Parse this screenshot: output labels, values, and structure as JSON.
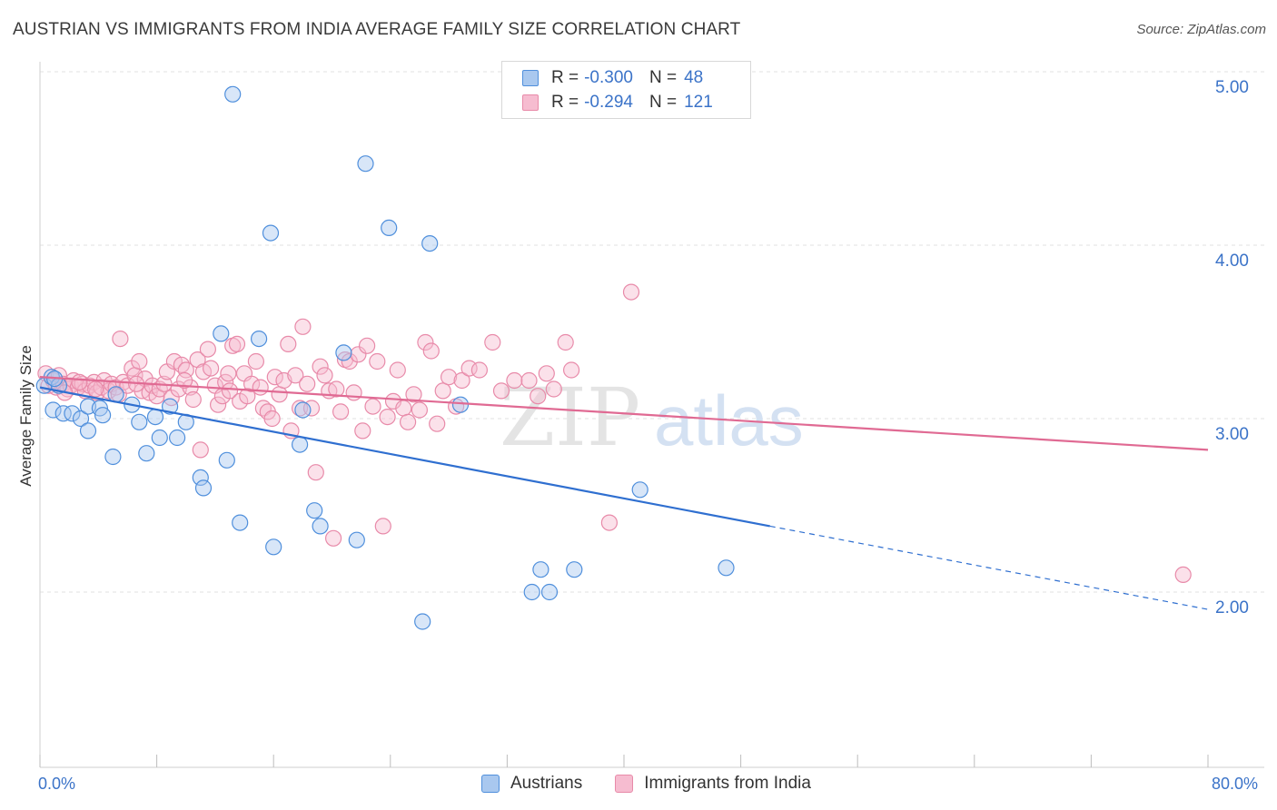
{
  "header": {
    "title": "AUSTRIAN VS IMMIGRANTS FROM INDIA AVERAGE FAMILY SIZE CORRELATION CHART",
    "source": "Source: ZipAtlas.com"
  },
  "watermark": {
    "text_zip": "ZIP",
    "text_atlas": "atlas"
  },
  "legend_top": {
    "rows": [
      {
        "r_label": "R =",
        "r_value": "-0.300",
        "n_label": "N =",
        "n_value": "48"
      },
      {
        "r_label": "R =",
        "r_value": "-0.294",
        "n_label": "N =",
        "n_value": "121"
      }
    ]
  },
  "legend_bottom": {
    "items": [
      {
        "label": "Austrians"
      },
      {
        "label": "Immigrants from India"
      }
    ]
  },
  "axes": {
    "ylabel": "Average Family Size",
    "x_tick_left": "0.0%",
    "x_tick_right": "80.0%",
    "y_ticks": [
      "5.00",
      "4.00",
      "3.00",
      "2.00"
    ]
  },
  "colors": {
    "blue_fill": "#a9c8ef",
    "blue_stroke": "#4f8fdc",
    "blue_line": "#2f6fd0",
    "pink_fill": "#f6bcd0",
    "pink_stroke": "#e88aa9",
    "pink_line": "#e06a93",
    "accent_text": "#3b73c8"
  },
  "chart_data": {
    "type": "scatter",
    "xlim": [
      0,
      80
    ],
    "ylim": [
      1.0,
      5.1
    ],
    "x_unit": "%",
    "grid": "horizontal dashed",
    "series": [
      {
        "name": "Austrians",
        "r": -0.3,
        "n": 48,
        "points": [
          [
            0.3,
            3.19
          ],
          [
            0.8,
            3.24
          ],
          [
            0.9,
            3.05
          ],
          [
            1.3,
            3.19
          ],
          [
            1.6,
            3.03
          ],
          [
            2.2,
            3.03
          ],
          [
            2.8,
            3.0
          ],
          [
            3.3,
            3.07
          ],
          [
            3.3,
            2.93
          ],
          [
            4.1,
            3.06
          ],
          [
            4.3,
            3.02
          ],
          [
            5.0,
            2.78
          ],
          [
            5.2,
            3.14
          ],
          [
            6.3,
            3.08
          ],
          [
            6.8,
            2.98
          ],
          [
            7.3,
            2.8
          ],
          [
            7.9,
            3.01
          ],
          [
            8.2,
            2.89
          ],
          [
            8.9,
            3.07
          ],
          [
            9.4,
            2.89
          ],
          [
            10.0,
            2.98
          ],
          [
            11.0,
            2.66
          ],
          [
            11.2,
            2.6
          ],
          [
            12.4,
            3.49
          ],
          [
            12.8,
            2.76
          ],
          [
            13.2,
            4.87
          ],
          [
            13.7,
            2.4
          ],
          [
            15.0,
            3.46
          ],
          [
            15.8,
            4.07
          ],
          [
            16.0,
            2.26
          ],
          [
            17.8,
            2.85
          ],
          [
            18.0,
            3.05
          ],
          [
            18.8,
            2.47
          ],
          [
            19.2,
            2.38
          ],
          [
            20.8,
            3.38
          ],
          [
            21.7,
            2.3
          ],
          [
            22.3,
            4.47
          ],
          [
            23.9,
            4.1
          ],
          [
            26.2,
            1.83
          ],
          [
            26.7,
            4.01
          ],
          [
            28.8,
            3.08
          ],
          [
            33.7,
            2.0
          ],
          [
            34.3,
            2.13
          ],
          [
            34.9,
            2.0
          ],
          [
            36.6,
            2.13
          ],
          [
            41.1,
            2.59
          ],
          [
            47.0,
            2.14
          ],
          [
            1.0,
            3.23
          ]
        ],
        "trend": {
          "x0": 0,
          "y0": 3.18,
          "x1": 50,
          "y1": 2.38,
          "dash_to_x": 80,
          "dash_to_y": 1.9
        }
      },
      {
        "name": "Immigrants from India",
        "r": -0.294,
        "n": 121,
        "points": [
          [
            0.4,
            3.26
          ],
          [
            0.6,
            3.19
          ],
          [
            0.9,
            3.22
          ],
          [
            1.1,
            3.18
          ],
          [
            1.3,
            3.25
          ],
          [
            1.6,
            3.2
          ],
          [
            1.9,
            3.17
          ],
          [
            2.1,
            3.19
          ],
          [
            2.3,
            3.22
          ],
          [
            2.6,
            3.18
          ],
          [
            2.9,
            3.2
          ],
          [
            3.1,
            3.16
          ],
          [
            3.4,
            3.19
          ],
          [
            3.7,
            3.21
          ],
          [
            3.9,
            3.15
          ],
          [
            4.2,
            3.18
          ],
          [
            4.4,
            3.22
          ],
          [
            4.7,
            3.16
          ],
          [
            4.9,
            3.2
          ],
          [
            5.2,
            3.18
          ],
          [
            5.4,
            3.14
          ],
          [
            5.5,
            3.46
          ],
          [
            5.7,
            3.21
          ],
          [
            6.0,
            3.19
          ],
          [
            6.3,
            3.29
          ],
          [
            6.5,
            3.25
          ],
          [
            6.8,
            3.33
          ],
          [
            7.0,
            3.16
          ],
          [
            7.2,
            3.23
          ],
          [
            7.5,
            3.15
          ],
          [
            7.7,
            3.19
          ],
          [
            8.0,
            3.13
          ],
          [
            8.2,
            3.17
          ],
          [
            8.5,
            3.2
          ],
          [
            8.7,
            3.27
          ],
          [
            9.0,
            3.12
          ],
          [
            9.2,
            3.33
          ],
          [
            9.5,
            3.17
          ],
          [
            9.7,
            3.31
          ],
          [
            10.0,
            3.28
          ],
          [
            10.3,
            3.18
          ],
          [
            10.5,
            3.11
          ],
          [
            10.8,
            3.34
          ],
          [
            11.0,
            2.82
          ],
          [
            11.2,
            3.27
          ],
          [
            11.5,
            3.4
          ],
          [
            11.7,
            3.29
          ],
          [
            12.0,
            3.19
          ],
          [
            12.2,
            3.08
          ],
          [
            12.5,
            3.13
          ],
          [
            12.7,
            3.21
          ],
          [
            13.0,
            3.16
          ],
          [
            13.2,
            3.42
          ],
          [
            13.5,
            3.43
          ],
          [
            13.7,
            3.1
          ],
          [
            14.0,
            3.26
          ],
          [
            14.2,
            3.13
          ],
          [
            14.5,
            3.2
          ],
          [
            14.8,
            3.33
          ],
          [
            15.1,
            3.18
          ],
          [
            15.3,
            3.06
          ],
          [
            15.6,
            3.04
          ],
          [
            15.9,
            3.0
          ],
          [
            16.1,
            3.24
          ],
          [
            16.4,
            3.14
          ],
          [
            16.7,
            3.22
          ],
          [
            17.0,
            3.43
          ],
          [
            17.2,
            2.93
          ],
          [
            17.5,
            3.25
          ],
          [
            17.8,
            3.06
          ],
          [
            18.0,
            3.53
          ],
          [
            18.3,
            3.2
          ],
          [
            18.6,
            3.06
          ],
          [
            18.9,
            2.69
          ],
          [
            19.2,
            3.3
          ],
          [
            19.5,
            3.25
          ],
          [
            19.8,
            3.16
          ],
          [
            20.1,
            2.31
          ],
          [
            20.3,
            3.17
          ],
          [
            20.6,
            3.04
          ],
          [
            20.9,
            3.34
          ],
          [
            21.2,
            3.33
          ],
          [
            21.5,
            3.15
          ],
          [
            21.8,
            3.37
          ],
          [
            22.1,
            2.93
          ],
          [
            22.4,
            3.42
          ],
          [
            22.8,
            3.07
          ],
          [
            23.1,
            3.33
          ],
          [
            23.5,
            2.38
          ],
          [
            23.8,
            3.01
          ],
          [
            24.2,
            3.1
          ],
          [
            24.5,
            3.28
          ],
          [
            24.9,
            3.06
          ],
          [
            25.2,
            2.98
          ],
          [
            25.6,
            3.14
          ],
          [
            26.0,
            3.05
          ],
          [
            26.4,
            3.44
          ],
          [
            26.8,
            3.39
          ],
          [
            27.2,
            2.97
          ],
          [
            27.6,
            3.16
          ],
          [
            28.0,
            3.24
          ],
          [
            28.5,
            3.07
          ],
          [
            28.9,
            3.22
          ],
          [
            29.4,
            3.29
          ],
          [
            30.1,
            3.28
          ],
          [
            31.0,
            3.44
          ],
          [
            31.6,
            3.16
          ],
          [
            32.5,
            3.22
          ],
          [
            33.5,
            3.22
          ],
          [
            34.1,
            3.13
          ],
          [
            34.7,
            3.26
          ],
          [
            35.2,
            3.17
          ],
          [
            36.0,
            3.44
          ],
          [
            36.4,
            3.28
          ],
          [
            39.0,
            2.4
          ],
          [
            40.5,
            3.73
          ],
          [
            78.3,
            2.1
          ],
          [
            1.7,
            3.15
          ],
          [
            2.7,
            3.21
          ],
          [
            3.8,
            3.17
          ],
          [
            6.6,
            3.2
          ],
          [
            9.9,
            3.22
          ],
          [
            12.9,
            3.26
          ]
        ],
        "trend": {
          "x0": 0,
          "y0": 3.24,
          "x1": 80,
          "y1": 2.82
        }
      }
    ]
  }
}
